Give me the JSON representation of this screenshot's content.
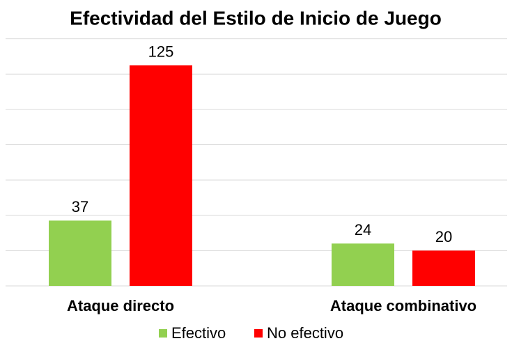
{
  "chart_data": {
    "type": "bar",
    "title": "Efectividad del Estilo de Inicio de Juego",
    "categories": [
      "Ataque directo",
      "Ataque combinativo"
    ],
    "series": [
      {
        "name": "Efectivo",
        "color": "#92d050",
        "values": [
          37,
          24
        ]
      },
      {
        "name": "No efectivo",
        "color": "#ff0000",
        "values": [
          125,
          20
        ]
      }
    ],
    "ylim": [
      0,
      140
    ],
    "yticks": [
      0,
      20,
      40,
      60,
      80,
      100,
      120,
      140
    ],
    "grid": true,
    "legend": "bottom"
  }
}
